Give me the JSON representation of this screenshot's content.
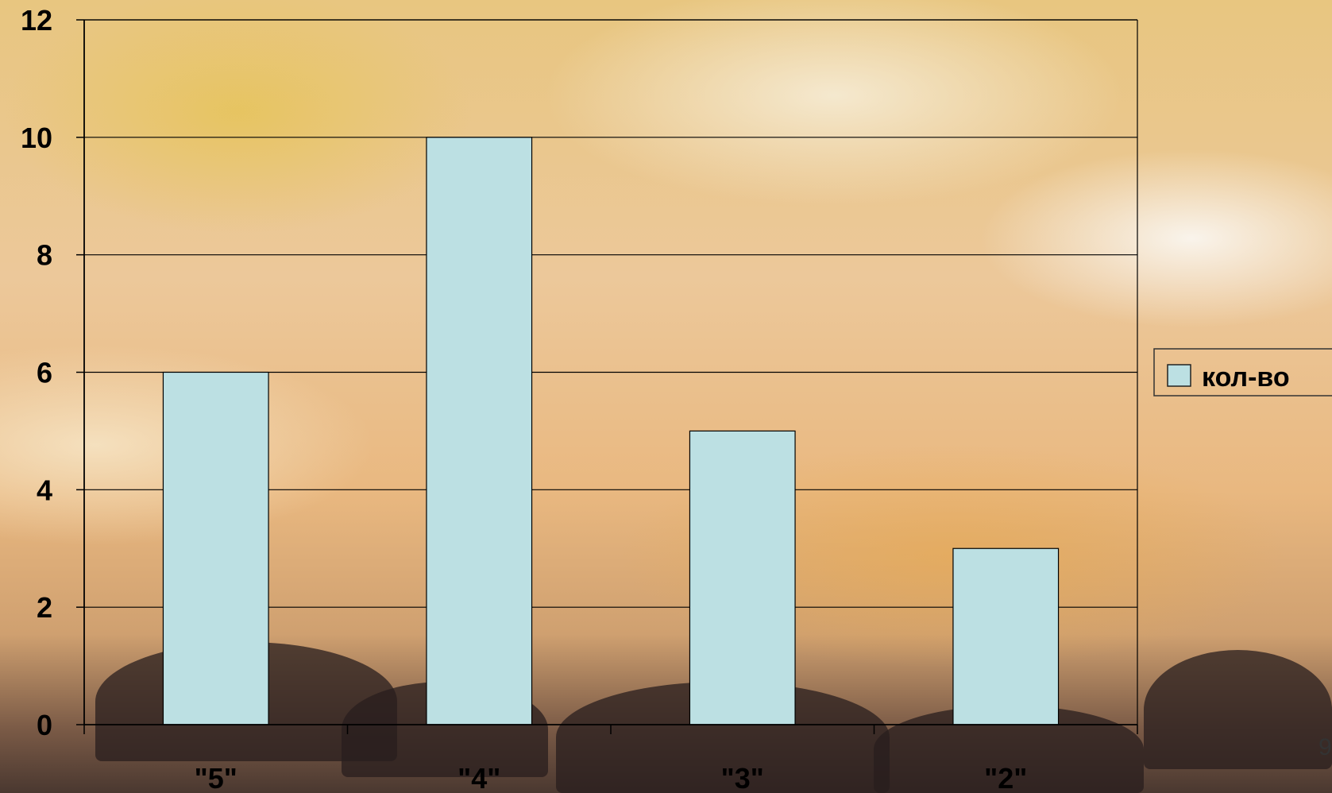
{
  "chart_data": {
    "type": "bar",
    "categories": [
      "\"5\"",
      "\"4\"",
      "\"3\"",
      "\"2\""
    ],
    "series": [
      {
        "name": "кол-во",
        "values": [
          6,
          10,
          5,
          3
        ]
      }
    ],
    "ylim": [
      0,
      12
    ],
    "yticks": [
      0,
      2,
      4,
      6,
      8,
      10,
      12
    ],
    "grid": true,
    "legend_position": "right",
    "bar_color": "#bce0e3",
    "gridline_color": "#000000"
  },
  "page_number": "9"
}
